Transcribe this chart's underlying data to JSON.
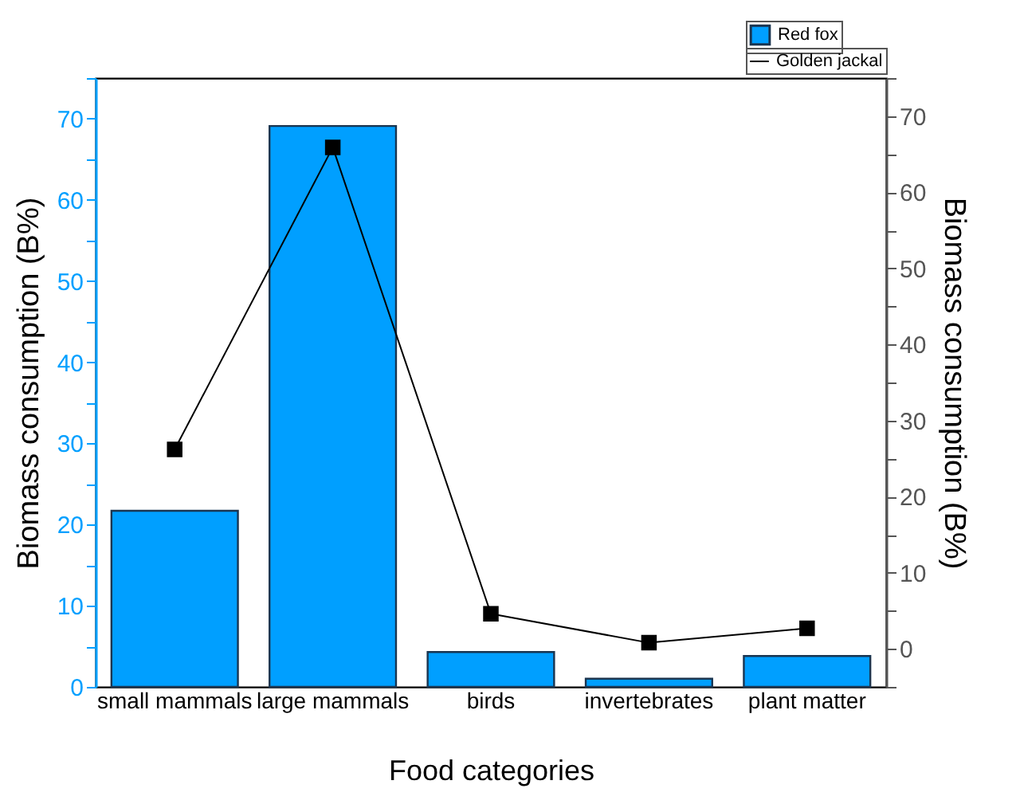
{
  "chart_data": {
    "type": "bar",
    "xlabel": "Food categories",
    "ylabel": "Biomass consumption (B%)",
    "y2label": "Biomass consumption (B%)",
    "categories": [
      "small mammals",
      "large mammals",
      "birds",
      "invertebrates",
      "plant matter"
    ],
    "series": [
      {
        "name": "Red fox",
        "color": "#009fff",
        "values": [
          21.7,
          69.1,
          4.3,
          1.0,
          3.8
        ]
      },
      {
        "name": "Golden jackal",
        "type": "line",
        "axis": "y2",
        "color": "#000000",
        "marker": "square",
        "values": [
          26.2,
          65.9,
          4.6,
          0.8,
          2.7
        ]
      }
    ],
    "ylim": [
      0,
      75
    ],
    "yticks": [
      0,
      {
        "value": 5,
        "label": null
      },
      10,
      {
        "value": 15,
        "label": null
      },
      20,
      {
        "value": 25,
        "label": null
      },
      30,
      {
        "value": 35,
        "label": null
      },
      40,
      {
        "value": 45,
        "label": null
      },
      50,
      {
        "value": 55,
        "label": null
      },
      60,
      {
        "value": 65,
        "label": null
      },
      70,
      {
        "value": 75,
        "label": null
      }
    ],
    "y2lim": [
      -5,
      75
    ],
    "y2ticks": [
      {
        "value": -5,
        "label": null
      },
      0,
      {
        "value": 5,
        "label": null
      },
      10,
      {
        "value": 15,
        "label": null
      },
      20,
      {
        "value": 25,
        "label": null
      },
      30,
      {
        "value": 35,
        "label": null
      },
      40,
      {
        "value": 45,
        "label": null
      },
      50,
      {
        "value": 55,
        "label": null
      },
      60,
      {
        "value": 65,
        "label": null
      },
      70,
      {
        "value": 75,
        "label": null
      }
    ],
    "legend": "top right",
    "grid": false
  }
}
